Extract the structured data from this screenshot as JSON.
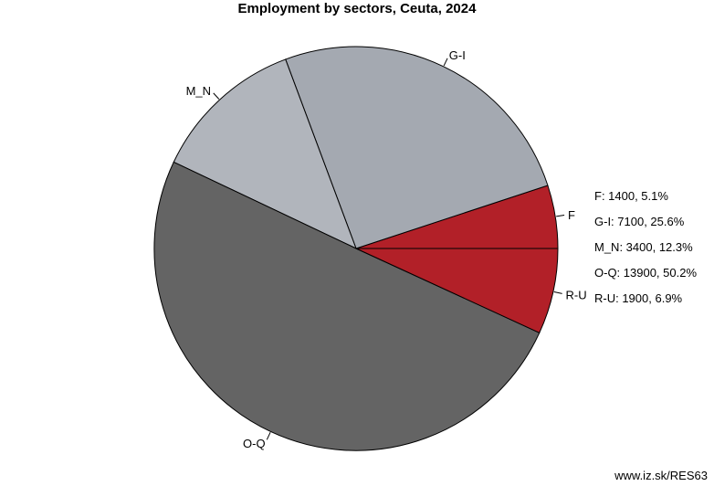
{
  "chart_data": {
    "type": "pie",
    "title": "Employment by sectors, Ceuta, 2024",
    "slices": [
      {
        "label": "F",
        "value": 1400,
        "percent": "5.1%",
        "color": "#b22028"
      },
      {
        "label": "G-I",
        "value": 7100,
        "percent": "25.6%",
        "color": "#a4a9b1"
      },
      {
        "label": "M_N",
        "value": 3400,
        "percent": "12.3%",
        "color": "#b1b5bc"
      },
      {
        "label": "O-Q",
        "value": 13900,
        "percent": "50.2%",
        "color": "#646464"
      },
      {
        "label": "R-U",
        "value": 1900,
        "percent": "6.9%",
        "color": "#b22028"
      }
    ],
    "legend": [
      "F: 1400, 5.1%",
      "G-I: 7100, 25.6%",
      "M_N: 3400, 12.3%",
      "O-Q: 13900, 50.2%",
      "R-U: 1900, 6.9%"
    ],
    "legend_position": "right"
  },
  "credit": "www.iz.sk/RES63"
}
